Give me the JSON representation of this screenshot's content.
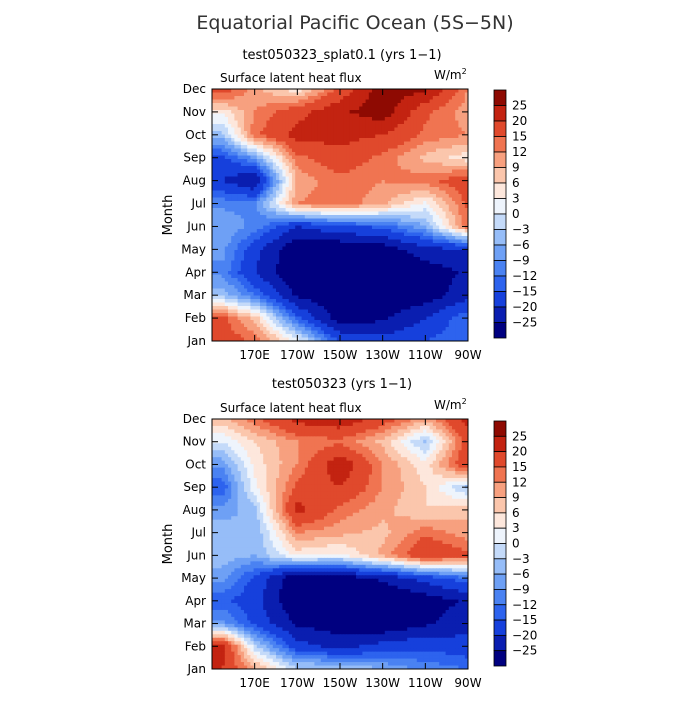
{
  "figure_title": "Equatorial Pacific Ocean (5S−5N)",
  "colors": [
    "#000080",
    "#0a1eb0",
    "#1640dc",
    "#2d63ee",
    "#4a82f2",
    "#6ea0f5",
    "#96bdf8",
    "#c4daf9",
    "#eef4fc",
    "#fde7dc",
    "#fbc6ac",
    "#f7a07f",
    "#f07451",
    "#e0492c",
    "#c32311",
    "#8e0a02"
  ],
  "colorbar_labels": [
    "25",
    "20",
    "15",
    "12",
    "9",
    "6",
    "3",
    "0",
    "−3",
    "−6",
    "−9",
    "−12",
    "−15",
    "−20",
    "−25"
  ],
  "chart_data": [
    {
      "type": "heatmap",
      "title": "test050323_splat0.1 (yrs 1−1)",
      "subtitle": "Surface latent heat flux",
      "units": "W/m",
      "units_sup": "2",
      "ylabel": "Month",
      "xticks": [
        "170E",
        "170W",
        "150W",
        "130W",
        "110W",
        "90W"
      ],
      "yticks": [
        "Jan",
        "Feb",
        "Mar",
        "Apr",
        "May",
        "Jun",
        "Jul",
        "Aug",
        "Sep",
        "Oct",
        "Nov",
        "Dec"
      ],
      "levels": [
        -25,
        -20,
        -15,
        -12,
        -9,
        -6,
        -3,
        0,
        3,
        6,
        9,
        12,
        15,
        20,
        25
      ],
      "x_longitudes": [
        155,
        170,
        190,
        210,
        230,
        250,
        270
      ],
      "z": [
        [
          18,
          14,
          2,
          -16,
          -18,
          -15,
          -12
        ],
        [
          16,
          8,
          -14,
          -28,
          -26,
          -20,
          -12
        ],
        [
          -4,
          -12,
          -26,
          -30,
          -30,
          -28,
          -22
        ],
        [
          -10,
          -20,
          -30,
          -30,
          -30,
          -28,
          -24
        ],
        [
          -8,
          -18,
          -30,
          -30,
          -28,
          -22,
          -20
        ],
        [
          -6,
          -10,
          -20,
          -16,
          -14,
          -6,
          14
        ],
        [
          -10,
          -10,
          12,
          14,
          10,
          2,
          16
        ],
        [
          -20,
          -26,
          10,
          14,
          12,
          14,
          18
        ],
        [
          -16,
          -8,
          14,
          18,
          14,
          8,
          4
        ],
        [
          -4,
          14,
          22,
          22,
          20,
          14,
          12
        ],
        [
          4,
          12,
          18,
          24,
          28,
          16,
          10
        ],
        [
          18,
          10,
          4,
          16,
          28,
          26,
          12
        ]
      ]
    },
    {
      "type": "heatmap",
      "title": "test050323 (yrs 1−1)",
      "subtitle": "Surface latent heat flux",
      "units": "W/m",
      "units_sup": "2",
      "ylabel": "Month",
      "xticks": [
        "170E",
        "170W",
        "150W",
        "130W",
        "110W",
        "90W"
      ],
      "yticks": [
        "Jan",
        "Feb",
        "Mar",
        "Apr",
        "May",
        "Jun",
        "Jul",
        "Aug",
        "Sep",
        "Oct",
        "Nov",
        "Dec"
      ],
      "levels": [
        -25,
        -20,
        -15,
        -12,
        -9,
        -6,
        -3,
        0,
        3,
        6,
        9,
        12,
        15,
        20,
        25
      ],
      "x_longitudes": [
        155,
        170,
        190,
        210,
        230,
        250,
        270
      ],
      "z": [
        [
          20,
          10,
          -2,
          -2,
          -6,
          -10,
          -12
        ],
        [
          22,
          -2,
          -18,
          -22,
          -18,
          -16,
          -18
        ],
        [
          -8,
          -16,
          -26,
          -28,
          -30,
          -26,
          -22
        ],
        [
          -14,
          -18,
          -30,
          -30,
          -30,
          -28,
          -24
        ],
        [
          -8,
          -16,
          -30,
          -28,
          -24,
          -18,
          -12
        ],
        [
          -4,
          -6,
          4,
          2,
          10,
          20,
          16
        ],
        [
          -4,
          -6,
          12,
          10,
          8,
          14,
          10
        ],
        [
          -8,
          -4,
          22,
          14,
          10,
          6,
          8
        ],
        [
          -14,
          2,
          16,
          20,
          12,
          6,
          -4
        ],
        [
          -8,
          4,
          12,
          24,
          12,
          4,
          20
        ],
        [
          0,
          6,
          12,
          14,
          8,
          -4,
          18
        ],
        [
          8,
          14,
          22,
          24,
          18,
          10,
          22
        ]
      ]
    }
  ]
}
